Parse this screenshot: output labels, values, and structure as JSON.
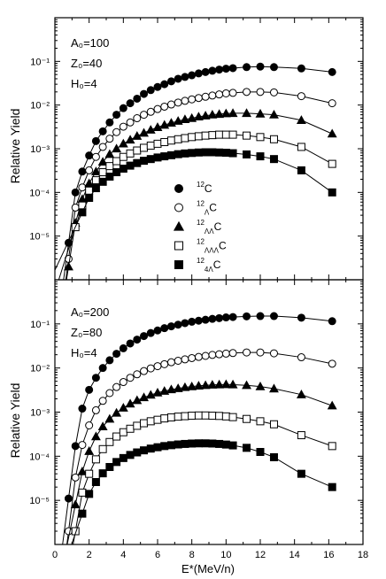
{
  "chart_data": [
    {
      "type": "scatter",
      "panel": "top",
      "ylabel": "Relative Yield",
      "xlabel": "",
      "yscale": "log",
      "ylim": [
        1e-06,
        1
      ],
      "xlim": [
        0,
        18
      ],
      "annotations": [
        "A₀=100",
        "Z₀=40",
        "H₀=4"
      ],
      "y_tick_labels": [
        "10⁻¹",
        "10⁻²",
        "10⁻³",
        "10⁻⁴",
        "10⁻⁵"
      ],
      "legend_placement": "center",
      "x": [
        0.8,
        1.2,
        1.6,
        2.0,
        2.4,
        2.8,
        3.2,
        3.6,
        4.0,
        4.4,
        4.8,
        5.2,
        5.6,
        6.0,
        6.4,
        6.8,
        7.2,
        7.6,
        8.0,
        8.4,
        8.8,
        9.2,
        9.6,
        10.0,
        10.4,
        11.2,
        12.0,
        12.8,
        14.4,
        16.2
      ],
      "series": [
        {
          "label": "12C",
          "marker": "filled-circle",
          "values": [
            7e-06,
            0.0001,
            0.0003,
            0.0007,
            0.0015,
            0.0025,
            0.004,
            0.006,
            0.0085,
            0.011,
            0.014,
            0.018,
            0.022,
            0.026,
            0.03,
            0.035,
            0.04,
            0.044,
            0.048,
            0.053,
            0.057,
            0.061,
            0.065,
            0.068,
            0.07,
            0.074,
            0.076,
            0.074,
            0.069,
            0.057
          ]
        },
        {
          "label": "12ΛC",
          "marker": "open-circle",
          "values": [
            3e-06,
            4.5e-05,
            0.00013,
            0.00032,
            0.00065,
            0.0011,
            0.0017,
            0.0024,
            0.0032,
            0.004,
            0.005,
            0.006,
            0.007,
            0.0081,
            0.0092,
            0.0103,
            0.0114,
            0.0125,
            0.0135,
            0.0145,
            0.0155,
            0.0165,
            0.0175,
            0.0185,
            0.019,
            0.02,
            0.02,
            0.0195,
            0.016,
            0.011
          ]
        },
        {
          "label": "12ΛΛC",
          "marker": "filled-triangle",
          "values": [
            2e-06,
            2e-05,
            7e-05,
            0.00016,
            0.0003,
            0.0005,
            0.00075,
            0.001,
            0.0013,
            0.0016,
            0.00195,
            0.0023,
            0.0027,
            0.0031,
            0.0035,
            0.0039,
            0.0043,
            0.0047,
            0.005,
            0.0054,
            0.0057,
            0.006,
            0.0062,
            0.0064,
            0.0065,
            0.0065,
            0.0063,
            0.006,
            0.0045,
            0.0022
          ]
        },
        {
          "label": "12ΛΛΛC",
          "marker": "open-square",
          "values": [
            null,
            1.6e-05,
            5e-05,
            0.00011,
            0.00019,
            0.00029,
            0.0004,
            0.00052,
            0.00065,
            0.00078,
            0.00091,
            0.00105,
            0.00118,
            0.0013,
            0.00142,
            0.00154,
            0.00165,
            0.00175,
            0.00185,
            0.00193,
            0.002,
            0.00205,
            0.0021,
            0.0021,
            0.0021,
            0.002,
            0.00185,
            0.00165,
            0.0011,
            0.00045
          ]
        },
        {
          "label": "124ΛC",
          "marker": "filled-square",
          "values": [
            null,
            null,
            3.5e-05,
            7.5e-05,
            0.000125,
            0.000175,
            0.00023,
            0.00029,
            0.00035,
            0.00041,
            0.00047,
            0.00053,
            0.00058,
            0.00063,
            0.00067,
            0.00071,
            0.00075,
            0.00078,
            0.0008,
            0.00082,
            0.00083,
            0.00083,
            0.00082,
            0.00081,
            0.00079,
            0.00074,
            0.00067,
            0.00058,
            0.00032,
            0.0001
          ]
        }
      ]
    },
    {
      "type": "scatter",
      "panel": "bottom",
      "ylabel": "Relative Yield",
      "xlabel": "E*(MeV/n)",
      "yscale": "log",
      "ylim": [
        1e-06,
        1
      ],
      "xlim": [
        0,
        18
      ],
      "x_tick_labels": [
        "0",
        "2",
        "4",
        "6",
        "8",
        "10",
        "12",
        "14",
        "16",
        "18"
      ],
      "annotations": [
        "A₀=200",
        "Z₀=80",
        "H₀=4"
      ],
      "y_tick_labels": [
        "10⁻¹",
        "10⁻²",
        "10⁻³",
        "10⁻⁴",
        "10⁻⁵"
      ],
      "x": [
        0.8,
        1.2,
        1.6,
        2.0,
        2.4,
        2.8,
        3.2,
        3.6,
        4.0,
        4.4,
        4.8,
        5.2,
        5.6,
        6.0,
        6.4,
        6.8,
        7.2,
        7.6,
        8.0,
        8.4,
        8.8,
        9.2,
        9.6,
        10.0,
        10.4,
        11.2,
        12.0,
        12.8,
        14.4,
        16.2
      ],
      "series": [
        {
          "label": "12C",
          "marker": "filled-circle",
          "values": [
            1.1e-05,
            0.00017,
            0.0012,
            0.0032,
            0.006,
            0.01,
            0.015,
            0.021,
            0.028,
            0.036,
            0.044,
            0.053,
            0.062,
            0.071,
            0.08,
            0.088,
            0.096,
            0.104,
            0.112,
            0.118,
            0.124,
            0.13,
            0.135,
            0.14,
            0.143,
            0.148,
            0.15,
            0.15,
            0.138,
            0.115
          ]
        },
        {
          "label": "12ΛC",
          "marker": "open-circle",
          "values": [
            2e-06,
            3.3e-05,
            0.00018,
            0.0005,
            0.0011,
            0.0018,
            0.0027,
            0.0037,
            0.0048,
            0.006,
            0.0072,
            0.0085,
            0.0098,
            0.011,
            0.0122,
            0.0135,
            0.0146,
            0.0157,
            0.0168,
            0.0178,
            0.0188,
            0.0198,
            0.0205,
            0.0212,
            0.0218,
            0.0225,
            0.0225,
            0.0215,
            0.0175,
            0.0125
          ]
        },
        {
          "label": "12ΛΛC",
          "marker": "filled-triangle",
          "values": [
            null,
            8e-06,
            4.5e-05,
            0.00013,
            0.00028,
            0.00047,
            0.0007,
            0.00096,
            0.00125,
            0.00155,
            0.00185,
            0.00215,
            0.00245,
            0.00275,
            0.003,
            0.00325,
            0.00345,
            0.00365,
            0.0038,
            0.00395,
            0.00405,
            0.00415,
            0.0042,
            0.00425,
            0.0042,
            0.00405,
            0.0038,
            0.0034,
            0.0025,
            0.0014
          ]
        },
        {
          "label": "12ΛΛΛC",
          "marker": "open-square",
          "values": [
            null,
            2e-06,
            1.5e-05,
            4e-05,
            8.5e-05,
            0.000145,
            0.00021,
            0.00028,
            0.00035,
            0.00042,
            0.00049,
            0.00056,
            0.00062,
            0.00067,
            0.00072,
            0.00076,
            0.00079,
            0.00081,
            0.00083,
            0.00084,
            0.00084,
            0.00083,
            0.00082,
            0.0008,
            0.00077,
            0.0007,
            0.00062,
            0.00053,
            0.0003,
            0.00017
          ]
        },
        {
          "label": "124ΛC",
          "marker": "filled-square",
          "values": [
            null,
            null,
            5e-06,
            1.4e-05,
            2.6e-05,
            4.1e-05,
            5.7e-05,
            7.4e-05,
            9.1e-05,
            0.000107,
            0.000122,
            0.000136,
            0.000149,
            0.00016,
            0.00017,
            0.000178,
            0.000185,
            0.00019,
            0.000194,
            0.000196,
            0.000196,
            0.000194,
            0.00019,
            0.000184,
            0.000176,
            0.000155,
            0.000125,
            9.5e-05,
            4e-05,
            2e-05
          ]
        }
      ]
    }
  ],
  "legend": [
    {
      "marker": "filled-circle",
      "sup": "12",
      "sub": "",
      "base": "C"
    },
    {
      "marker": "open-circle",
      "sup": "12",
      "sub": "Λ",
      "base": "C"
    },
    {
      "marker": "filled-triangle",
      "sup": "12",
      "sub": "ΛΛ",
      "base": "C"
    },
    {
      "marker": "open-square",
      "sup": "12",
      "sub": "ΛΛΛ",
      "base": "C"
    },
    {
      "marker": "filled-square",
      "sup": "12",
      "sub": "4Λ",
      "base": "C"
    }
  ]
}
